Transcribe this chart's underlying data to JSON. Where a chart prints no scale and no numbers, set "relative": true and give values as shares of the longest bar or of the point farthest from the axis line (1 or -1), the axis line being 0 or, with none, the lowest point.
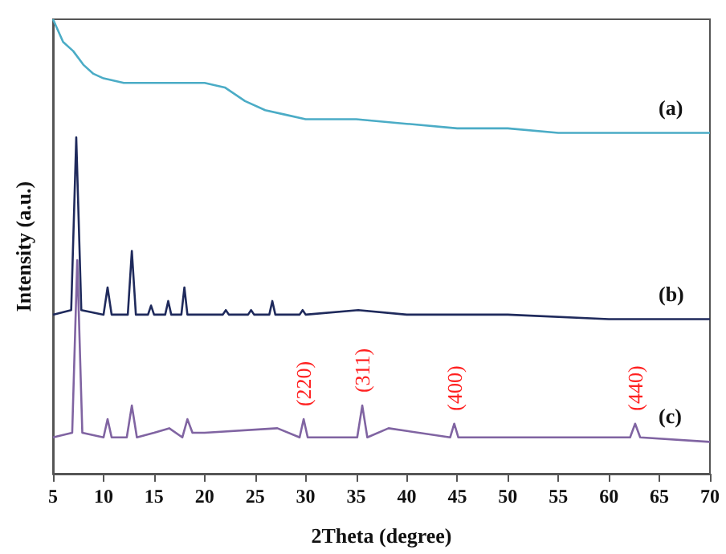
{
  "chart_data": {
    "type": "line",
    "relative": true,
    "xlabel": "2Theta (degree)",
    "ylabel": "Intensity (a.u.)",
    "xlim": [
      5,
      70
    ],
    "xticks": [
      5,
      10,
      15,
      20,
      25,
      30,
      35,
      40,
      45,
      50,
      55,
      60,
      65,
      70
    ],
    "grid": false,
    "legend": false,
    "marker": "none",
    "line_style": "solid",
    "series": [
      {
        "name": "(a)",
        "color": "#4bacc6",
        "x": [
          5,
          6,
          7,
          8,
          9,
          10,
          12,
          15,
          18,
          20,
          22,
          24,
          26,
          28,
          30,
          35,
          40,
          45,
          50,
          55,
          60,
          65,
          70
        ],
        "values": [
          1.0,
          0.95,
          0.93,
          0.9,
          0.88,
          0.87,
          0.86,
          0.86,
          0.86,
          0.86,
          0.85,
          0.82,
          0.8,
          0.79,
          0.78,
          0.78,
          0.77,
          0.76,
          0.76,
          0.75,
          0.75,
          0.75,
          0.75
        ]
      },
      {
        "name": "(b)",
        "color": "#1f2a5c",
        "x": [
          5,
          6.8,
          7.3,
          7.8,
          10,
          10.4,
          10.8,
          12.4,
          12.8,
          13.2,
          14.4,
          14.7,
          15,
          16.1,
          16.4,
          16.7,
          17.7,
          18,
          18.3,
          21.8,
          22.1,
          22.4,
          24.3,
          24.6,
          24.9,
          26.4,
          26.7,
          27,
          29.4,
          29.7,
          30,
          35.2,
          40,
          50,
          60,
          70
        ],
        "values": [
          0.35,
          0.36,
          0.74,
          0.36,
          0.35,
          0.41,
          0.35,
          0.35,
          0.49,
          0.35,
          0.35,
          0.37,
          0.35,
          0.35,
          0.38,
          0.35,
          0.35,
          0.41,
          0.35,
          0.35,
          0.36,
          0.35,
          0.35,
          0.36,
          0.35,
          0.35,
          0.38,
          0.35,
          0.35,
          0.36,
          0.35,
          0.36,
          0.35,
          0.35,
          0.34,
          0.34
        ]
      },
      {
        "name": "(c)",
        "color": "#8064a2",
        "x": [
          5,
          6.9,
          7.4,
          7.9,
          10,
          10.4,
          10.8,
          12.3,
          12.8,
          13.3,
          15,
          16.5,
          17.8,
          18.3,
          18.8,
          20,
          27.2,
          29.4,
          29.8,
          30.2,
          35.1,
          35.6,
          36.1,
          38.2,
          44.3,
          44.7,
          45.1,
          62.1,
          62.6,
          63.1,
          70
        ],
        "values": [
          0.08,
          0.09,
          0.47,
          0.09,
          0.08,
          0.12,
          0.08,
          0.08,
          0.15,
          0.08,
          0.09,
          0.1,
          0.08,
          0.12,
          0.09,
          0.09,
          0.1,
          0.08,
          0.12,
          0.08,
          0.08,
          0.15,
          0.08,
          0.1,
          0.08,
          0.11,
          0.08,
          0.08,
          0.11,
          0.08,
          0.07
        ]
      }
    ],
    "annotations": [
      {
        "text": "(220)",
        "x": 29.8,
        "y": 0.12
      },
      {
        "text": "(311)",
        "x": 35.6,
        "y": 0.15
      },
      {
        "text": "(400)",
        "x": 44.7,
        "y": 0.11
      },
      {
        "text": "(440)",
        "x": 62.6,
        "y": 0.11
      }
    ]
  }
}
